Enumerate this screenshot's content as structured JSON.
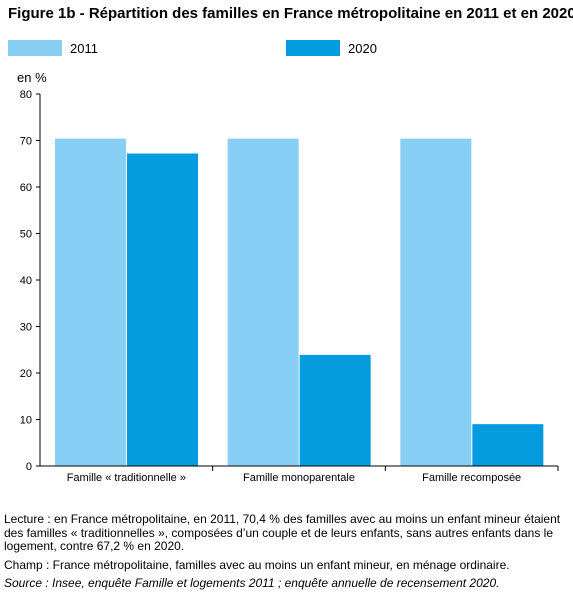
{
  "title": "Figure 1b - Répartition des familles en France métropolitaine en 2011 et en 2020",
  "unit_label": "en %",
  "colors": {
    "s2011": "#87CFF5",
    "s2020": "#049CDF",
    "axis": "#000000"
  },
  "chart_data": {
    "type": "bar",
    "title": "Figure 1b - Répartition des familles en France métropolitaine en 2011 et en 2020",
    "ylabel": "en %",
    "ylim": [
      0,
      80
    ],
    "yticks": [
      0,
      10,
      20,
      30,
      40,
      50,
      60,
      70,
      80
    ],
    "grid": false,
    "legend_position": "top",
    "categories": [
      "Famille « traditionnelle »",
      "Famille monoparentale",
      "Famille recomposée"
    ],
    "series": [
      {
        "name": "2011",
        "values": [
          70.4,
          70.4,
          70.4
        ]
      },
      {
        "name": "2020",
        "values": [
          67.2,
          23.9,
          9.0
        ]
      }
    ]
  },
  "notes": {
    "lecture": "Lecture : en France métropolitaine, en 2011, 70,4 % des familles avec au moins un enfant mineur étaient des familles « traditionnelles », composées d’un couple et de leurs enfants, sans autres enfants dans le logement, contre 67,2 % en 2020.",
    "champ": "Champ : France métropolitaine, familles avec au moins un enfant mineur, en ménage ordinaire.",
    "source": "Source : Insee, enquête Famille et logements 2011 ; enquête annuelle de recensement 2020."
  }
}
